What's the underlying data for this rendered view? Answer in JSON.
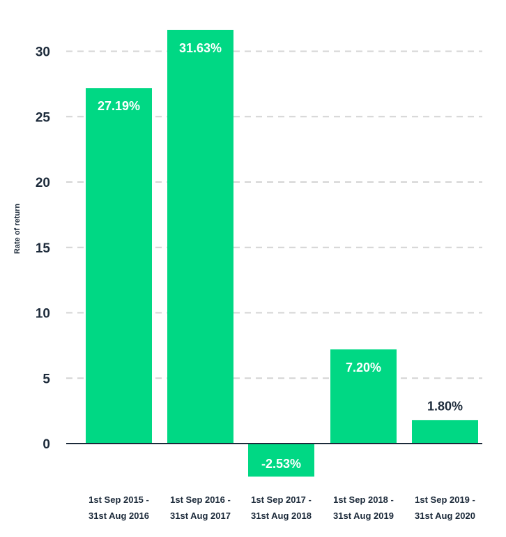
{
  "chart_data": {
    "type": "bar",
    "ylabel": "Rate of return",
    "ylim": [
      0,
      30
    ],
    "yticks": [
      0,
      5,
      10,
      15,
      20,
      25,
      30
    ],
    "grid": true,
    "categories": [
      [
        "1st Sep 2015 -",
        "31st Aug 2016"
      ],
      [
        "1st Sep 2016 -",
        "31st Aug 2017"
      ],
      [
        "1st Sep 2017 -",
        "31st Aug 2018"
      ],
      [
        "1st Sep 2018 -",
        "31st Aug 2019"
      ],
      [
        "1st Sep 2019 -",
        "31st Aug 2020"
      ]
    ],
    "values": [
      27.19,
      31.63,
      -2.53,
      7.2,
      1.8
    ],
    "data_labels": [
      "27.19%",
      "31.63%",
      "-2.53%",
      "7.20%",
      "1.80%"
    ]
  },
  "colors": {
    "bar": "#00d884",
    "text": "#1c2a3a",
    "grid": "#d4d4d4",
    "label_inside": "#ffffff"
  }
}
